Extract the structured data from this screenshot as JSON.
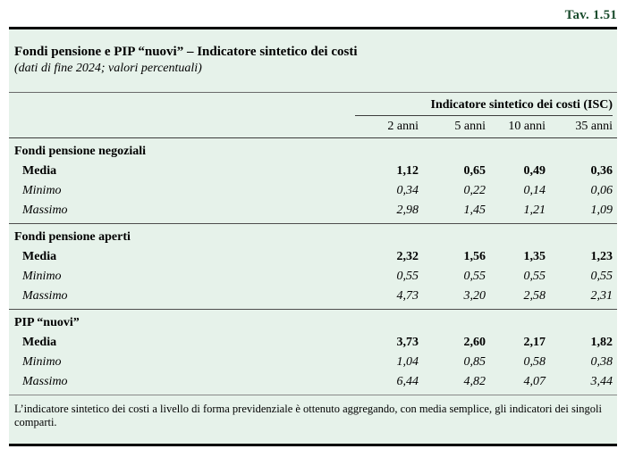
{
  "header": {
    "tav_label": "Tav. 1.51",
    "title": "Fondi pensione e PIP “nuovi” – Indicatore sintetico dei costi",
    "subtitle": "(dati di fine 2024; valori percentuali)"
  },
  "table": {
    "group_header": "Indicatore sintetico dei costi (ISC)",
    "columns": [
      "2 anni",
      "5 anni",
      "10 anni",
      "35 anni"
    ],
    "sections": [
      {
        "name": "Fondi pensione negoziali",
        "rows": [
          {
            "label": "Media",
            "values": [
              "1,12",
              "0,65",
              "0,49",
              "0,36"
            ]
          },
          {
            "label": "Minimo",
            "values": [
              "0,34",
              "0,22",
              "0,14",
              "0,06"
            ]
          },
          {
            "label": "Massimo",
            "values": [
              "2,98",
              "1,45",
              "1,21",
              "1,09"
            ]
          }
        ]
      },
      {
        "name": "Fondi pensione aperti",
        "rows": [
          {
            "label": "Media",
            "values": [
              "2,32",
              "1,56",
              "1,35",
              "1,23"
            ]
          },
          {
            "label": "Minimo",
            "values": [
              "0,55",
              "0,55",
              "0,55",
              "0,55"
            ]
          },
          {
            "label": "Massimo",
            "values": [
              "4,73",
              "3,20",
              "2,58",
              "2,31"
            ]
          }
        ]
      },
      {
        "name": "PIP “nuovi”",
        "rows": [
          {
            "label": "Media",
            "values": [
              "3,73",
              "2,60",
              "2,17",
              "1,82"
            ]
          },
          {
            "label": "Minimo",
            "values": [
              "1,04",
              "0,85",
              "0,58",
              "0,38"
            ]
          },
          {
            "label": "Massimo",
            "values": [
              "6,44",
              "4,82",
              "4,07",
              "3,44"
            ]
          }
        ]
      }
    ]
  },
  "footnote": "L’indicatore sintetico dei costi a livello di forma previdenziale è ottenuto aggregando, con media semplice, gli indicatori dei singoli comparti.",
  "colors": {
    "panel_background": "#e6f2ea",
    "tav_label_green": "#1b4d2e",
    "rule_black": "#000000",
    "rule_gray": "#4d4d4d"
  }
}
